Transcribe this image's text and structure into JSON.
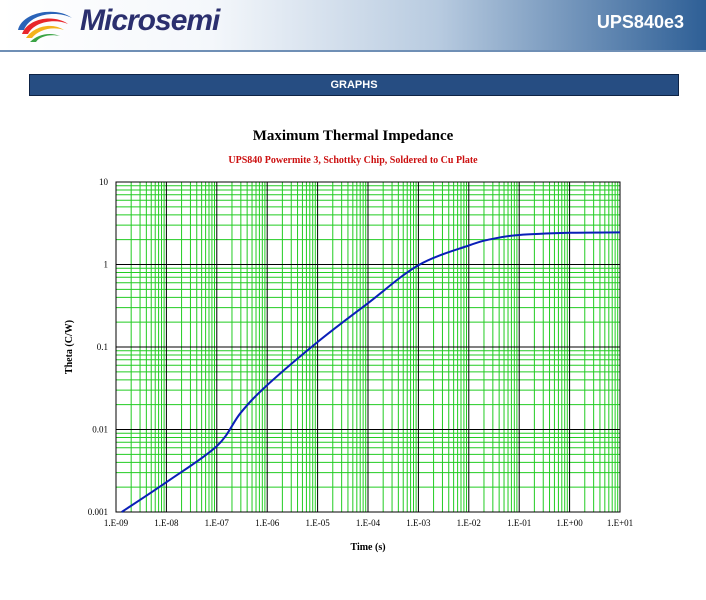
{
  "header": {
    "brand": "Microsemi",
    "part_number": "UPS840e3"
  },
  "section": {
    "title": "GRAPHS"
  },
  "colors": {
    "grid_minor": "#22cc22",
    "grid_major": "#000000",
    "curve": "#0a1fb8",
    "subtitle": "#cc1111",
    "section_bar": "#264d82"
  },
  "chart_data": {
    "type": "line",
    "title": "Maximum Thermal Impedance",
    "subtitle": "UPS840 Powermite 3, Schottky Chip, Soldered to Cu Plate",
    "xlabel": "Time (s)",
    "ylabel": "Theta (C/W)",
    "x_scale": "log",
    "y_scale": "log",
    "xlim": [
      1e-09,
      10
    ],
    "ylim": [
      0.001,
      10
    ],
    "grid": true,
    "x_ticks": [
      "1.E-09",
      "1.E-08",
      "1.E-07",
      "1.E-06",
      "1.E-05",
      "1.E-04",
      "1.E-03",
      "1.E-02",
      "1.E-01",
      "1.E+00",
      "1.E+01"
    ],
    "y_ticks": [
      "0.001",
      "0.01",
      "0.1",
      "1",
      "10"
    ],
    "series": [
      {
        "x": [
          1.3e-09,
          1e-08,
          1e-07,
          3e-07,
          1e-06,
          1e-05,
          0.0001,
          0.001,
          0.01,
          0.03,
          0.1,
          1,
          10
        ],
        "y": [
          0.001,
          0.0023,
          0.0063,
          0.016,
          0.0345,
          0.115,
          0.34,
          0.98,
          1.7,
          2.05,
          2.28,
          2.42,
          2.45
        ]
      }
    ]
  }
}
